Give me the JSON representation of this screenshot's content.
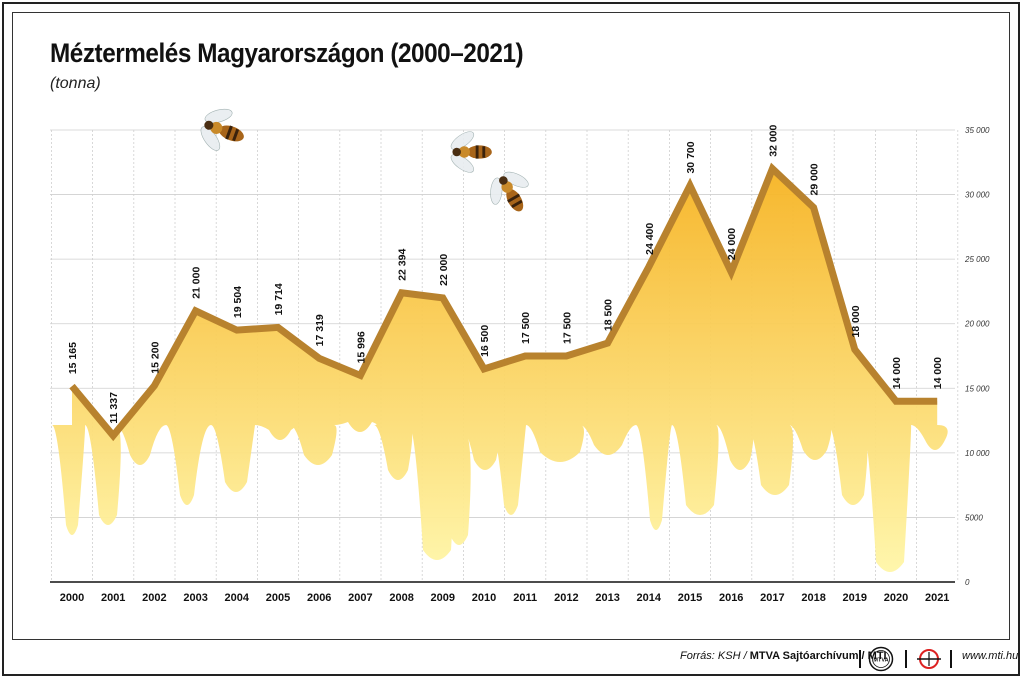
{
  "header": {
    "title": "Méztermelés Magyarországon (2000–2021)",
    "unit": "(tonna)"
  },
  "footer": {
    "source_label": "Forrás: KSH / ",
    "source_bold": "MTVA Sajtóarchívum / MTI",
    "website": "www.mti.hu",
    "logo1_text": "MTVA"
  },
  "colors": {
    "line": "#b8822e",
    "honey_top": "#f6b322",
    "honey_bottom": "#fff6a8",
    "grid": "#cfcfcf"
  },
  "chart_data": {
    "type": "area",
    "x": [
      "2000",
      "2001",
      "2002",
      "2003",
      "2004",
      "2005",
      "2006",
      "2007",
      "2008",
      "2009",
      "2010",
      "2011",
      "2012",
      "2013",
      "2014",
      "2015",
      "2016",
      "2017",
      "2018",
      "2019",
      "2020",
      "2021"
    ],
    "values": [
      15165,
      11337,
      15200,
      21000,
      19504,
      19714,
      17319,
      15996,
      22394,
      22000,
      16500,
      17500,
      17500,
      18500,
      24400,
      30700,
      24000,
      32000,
      29000,
      18000,
      14000,
      14000
    ],
    "labels": [
      "15 165",
      "11 337",
      "15 200",
      "21 000",
      "19 504",
      "19 714",
      "17 319",
      "15 996",
      "22 394",
      "22 000",
      "16 500",
      "17 500",
      "17 500",
      "18 500",
      "24 400",
      "30 700",
      "24 000",
      "32 000",
      "29 000",
      "18 000",
      "14 000",
      "14 000"
    ],
    "y_ticks": [
      0,
      5000,
      10000,
      15000,
      20000,
      25000,
      30000,
      35000
    ],
    "y_tick_labels": [
      "0",
      "5000",
      "10 000",
      "15 000",
      "20 000",
      "25 000",
      "30 000",
      "35 000"
    ],
    "ylim": [
      0,
      35000
    ],
    "y_axis_position": "right",
    "grid": true
  }
}
